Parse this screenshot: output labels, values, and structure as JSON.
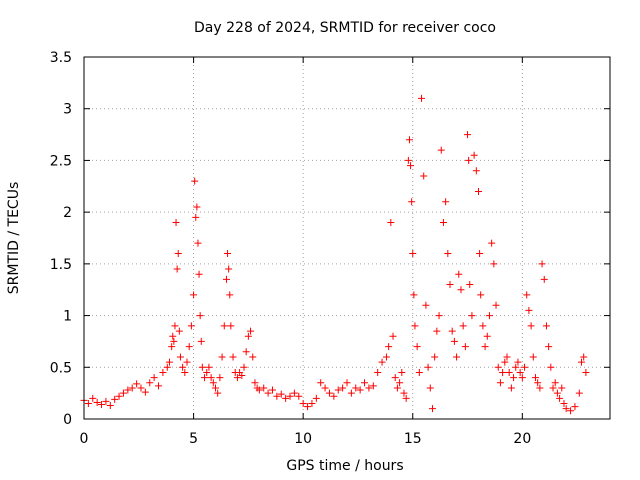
{
  "chart_data": {
    "type": "scatter",
    "title": "Day 228 of 2024, SRMTID for receiver coco",
    "xlabel": "GPS time / hours",
    "ylabel": "SRMTID / TECUs",
    "xlim": [
      0,
      24
    ],
    "ylim": [
      0,
      3.5
    ],
    "xticks": [
      0,
      5,
      10,
      15,
      20
    ],
    "yticks": [
      0,
      0.5,
      1,
      1.5,
      2,
      2.5,
      3,
      3.5
    ],
    "xtick_labels": [
      "0",
      "5",
      "10",
      "15",
      "20"
    ],
    "ytick_labels": [
      "0",
      "0.5",
      "1",
      "1.5",
      "2",
      "2.5",
      "3",
      "3.5"
    ],
    "grid": true,
    "marker": "+",
    "color": "#ff0000",
    "series": [
      {
        "name": "SRMTID",
        "x": [
          0.0,
          0.2,
          0.4,
          0.6,
          0.8,
          1.0,
          1.2,
          1.4,
          1.6,
          1.8,
          2.0,
          2.2,
          2.4,
          2.6,
          2.8,
          3.0,
          3.2,
          3.4,
          3.6,
          3.8,
          3.9,
          4.0,
          4.05,
          4.1,
          4.15,
          4.2,
          4.25,
          4.3,
          4.35,
          4.4,
          4.5,
          4.6,
          4.7,
          4.8,
          4.9,
          5.0,
          5.05,
          5.1,
          5.15,
          5.2,
          5.25,
          5.3,
          5.35,
          5.4,
          5.5,
          5.6,
          5.7,
          5.8,
          5.9,
          6.0,
          6.1,
          6.2,
          6.3,
          6.4,
          6.5,
          6.55,
          6.6,
          6.65,
          6.7,
          6.8,
          6.9,
          7.0,
          7.1,
          7.2,
          7.3,
          7.4,
          7.5,
          7.6,
          7.7,
          7.8,
          7.9,
          8.0,
          8.2,
          8.4,
          8.6,
          8.8,
          9.0,
          9.2,
          9.4,
          9.6,
          9.8,
          10.0,
          10.2,
          10.4,
          10.6,
          10.8,
          11.0,
          11.2,
          11.4,
          11.6,
          11.8,
          12.0,
          12.2,
          12.4,
          12.6,
          12.8,
          13.0,
          13.2,
          13.4,
          13.6,
          13.8,
          13.9,
          14.0,
          14.1,
          14.2,
          14.3,
          14.4,
          14.5,
          14.6,
          14.7,
          14.8,
          14.85,
          14.9,
          14.95,
          15.0,
          15.05,
          15.1,
          15.2,
          15.3,
          15.4,
          15.5,
          15.6,
          15.7,
          15.8,
          15.9,
          16.0,
          16.1,
          16.2,
          16.3,
          16.4,
          16.5,
          16.6,
          16.7,
          16.8,
          16.9,
          17.0,
          17.1,
          17.2,
          17.3,
          17.4,
          17.5,
          17.55,
          17.6,
          17.7,
          17.8,
          17.9,
          18.0,
          18.05,
          18.1,
          18.2,
          18.3,
          18.4,
          18.5,
          18.6,
          18.7,
          18.8,
          18.9,
          19.0,
          19.1,
          19.2,
          19.3,
          19.4,
          19.5,
          19.6,
          19.7,
          19.8,
          19.9,
          20.0,
          20.1,
          20.2,
          20.3,
          20.4,
          20.5,
          20.6,
          20.7,
          20.8,
          20.9,
          21.0,
          21.1,
          21.2,
          21.3,
          21.4,
          21.5,
          21.6,
          21.7,
          21.8,
          21.9,
          22.0,
          22.2,
          22.4,
          22.6,
          22.7,
          22.8,
          22.9
        ],
        "y": [
          0.18,
          0.15,
          0.2,
          0.16,
          0.14,
          0.17,
          0.13,
          0.19,
          0.22,
          0.25,
          0.28,
          0.3,
          0.34,
          0.3,
          0.26,
          0.35,
          0.4,
          0.32,
          0.45,
          0.5,
          0.55,
          0.7,
          0.8,
          0.75,
          0.9,
          1.9,
          1.45,
          1.6,
          0.85,
          0.6,
          0.5,
          0.45,
          0.55,
          0.7,
          0.9,
          1.2,
          2.3,
          1.95,
          2.05,
          1.7,
          1.4,
          1.0,
          0.75,
          0.5,
          0.4,
          0.45,
          0.5,
          0.4,
          0.35,
          0.3,
          0.25,
          0.4,
          0.6,
          0.9,
          1.35,
          1.6,
          1.45,
          1.2,
          0.9,
          0.6,
          0.45,
          0.4,
          0.45,
          0.42,
          0.5,
          0.65,
          0.8,
          0.85,
          0.6,
          0.35,
          0.3,
          0.28,
          0.3,
          0.25,
          0.28,
          0.22,
          0.24,
          0.2,
          0.22,
          0.25,
          0.22,
          0.15,
          0.12,
          0.15,
          0.2,
          0.35,
          0.3,
          0.25,
          0.22,
          0.28,
          0.3,
          0.35,
          0.25,
          0.3,
          0.28,
          0.35,
          0.3,
          0.32,
          0.45,
          0.55,
          0.6,
          0.7,
          1.9,
          0.8,
          0.4,
          0.3,
          0.35,
          0.45,
          0.25,
          0.2,
          2.5,
          2.7,
          2.45,
          2.1,
          1.6,
          1.2,
          0.9,
          0.7,
          0.45,
          3.1,
          2.35,
          1.1,
          0.5,
          0.3,
          0.1,
          0.6,
          0.85,
          1.0,
          2.6,
          1.9,
          2.1,
          1.6,
          1.3,
          0.85,
          0.75,
          0.6,
          1.4,
          1.25,
          0.9,
          0.7,
          2.75,
          2.5,
          1.3,
          1.0,
          2.55,
          2.4,
          2.2,
          1.6,
          1.2,
          0.9,
          0.7,
          0.8,
          1.0,
          1.7,
          1.5,
          1.1,
          0.5,
          0.35,
          0.45,
          0.55,
          0.6,
          0.45,
          0.3,
          0.4,
          0.5,
          0.55,
          0.45,
          0.4,
          0.5,
          1.2,
          1.05,
          0.9,
          0.6,
          0.4,
          0.35,
          0.3,
          1.5,
          1.35,
          0.9,
          0.7,
          0.5,
          0.3,
          0.35,
          0.25,
          0.2,
          0.3,
          0.15,
          0.1,
          0.08,
          0.12,
          0.25,
          0.55,
          0.6,
          0.45
        ]
      }
    ]
  }
}
